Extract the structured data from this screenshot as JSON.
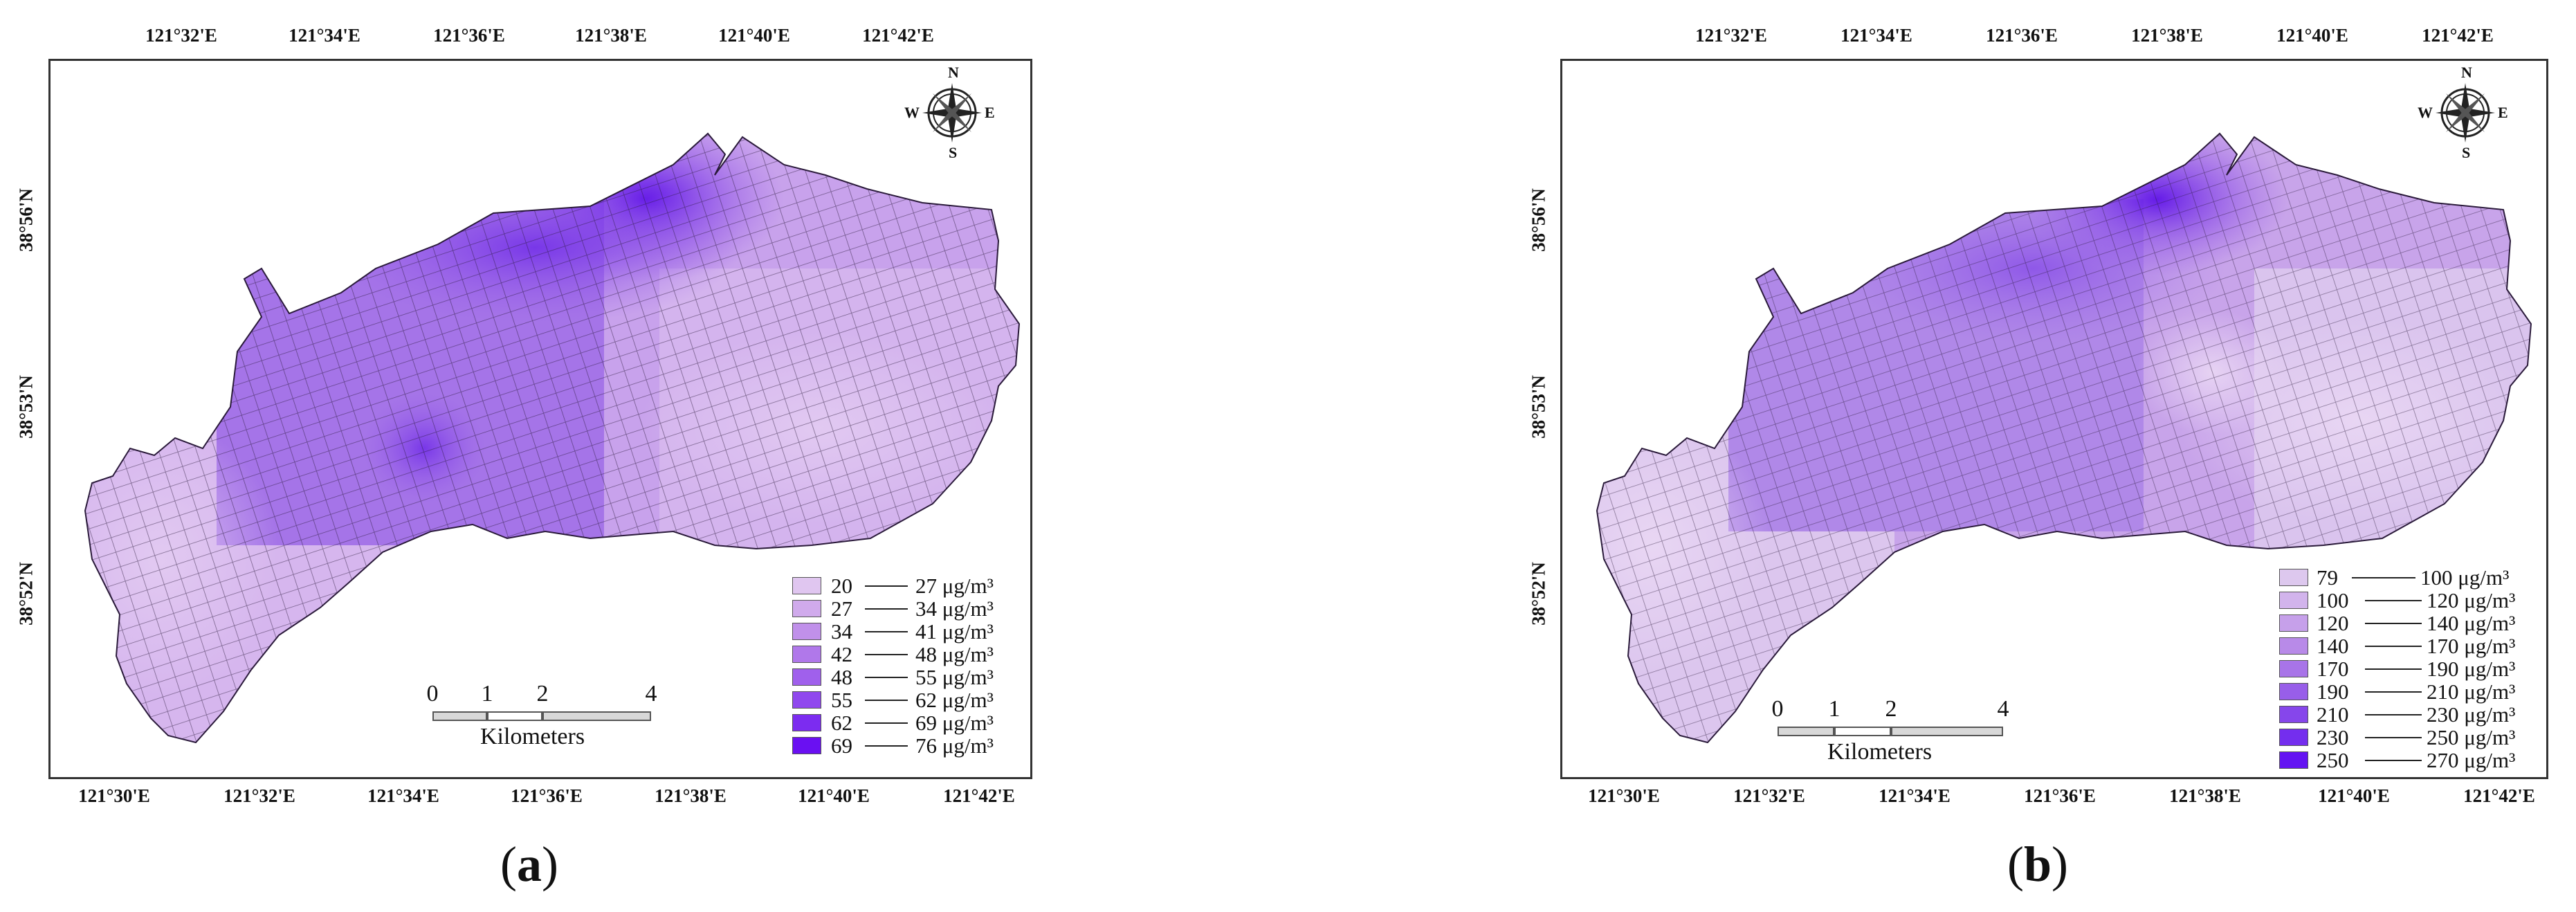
{
  "panels": [
    {
      "caption_open": "(",
      "caption_letter": "a",
      "caption_close": ")",
      "top_ticks": [
        "121°32'E",
        "121°34'E",
        "121°36'E",
        "121°38'E",
        "121°40'E",
        "121°42'E"
      ],
      "bottom_ticks": [
        "121°30'E",
        "121°32'E",
        "121°34'E",
        "121°36'E",
        "121°38'E",
        "121°40'E",
        "121°42'E"
      ],
      "left_ticks": [
        "38°56'N",
        "38°53'N",
        "38°52'N"
      ],
      "legend": [
        {
          "from": "20",
          "to": "27 μg/m³",
          "color": "#e0c6f0"
        },
        {
          "from": "27",
          "to": "34 μg/m³",
          "color": "#d0aaec"
        },
        {
          "from": "34",
          "to": "41 μg/m³",
          "color": "#c090ea"
        },
        {
          "from": "42",
          "to": "48 μg/m³",
          "color": "#b078ea"
        },
        {
          "from": "48",
          "to": "55 μg/m³",
          "color": "#a060ec"
        },
        {
          "from": "55",
          "to": "62 μg/m³",
          "color": "#9048ee"
        },
        {
          "from": "62",
          "to": "69 μg/m³",
          "color": "#7c2cf0"
        },
        {
          "from": "69",
          "to": "76 μg/m³",
          "color": "#6a10f2"
        }
      ],
      "scale": {
        "ticks": [
          "0",
          "1",
          "2",
          "4"
        ],
        "unit": "Kilometers"
      },
      "compass": {
        "n": "N",
        "s": "S",
        "e": "E",
        "w": "W"
      }
    },
    {
      "caption_open": "(",
      "caption_letter": "b",
      "caption_close": ")",
      "top_ticks": [
        "121°32'E",
        "121°34'E",
        "121°36'E",
        "121°38'E",
        "121°40'E",
        "121°42'E"
      ],
      "bottom_ticks": [
        "121°30'E",
        "121°32'E",
        "121°34'E",
        "121°36'E",
        "121°38'E",
        "121°40'E",
        "121°42'E"
      ],
      "left_ticks": [
        "38°56'N",
        "38°53'N",
        "38°52'N"
      ],
      "legend": [
        {
          "from": "79",
          "to": "100 μg/m³",
          "color": "#ddc8ee"
        },
        {
          "from": "100",
          "to": "120 μg/m³",
          "color": "#d2b4ec"
        },
        {
          "from": "120",
          "to": "140 μg/m³",
          "color": "#c6a0ea"
        },
        {
          "from": "140",
          "to": "170 μg/m³",
          "color": "#b88ae8"
        },
        {
          "from": "170",
          "to": "190 μg/m³",
          "color": "#a874e8"
        },
        {
          "from": "190",
          "to": "210 μg/m³",
          "color": "#985ee9"
        },
        {
          "from": "210",
          "to": "230 μg/m³",
          "color": "#8646eb"
        },
        {
          "from": "230",
          "to": "250 μg/m³",
          "color": "#742eee"
        },
        {
          "from": "250",
          "to": "270 μg/m³",
          "color": "#6414f2"
        }
      ],
      "scale": {
        "ticks": [
          "0",
          "1",
          "2",
          "4"
        ],
        "unit": "Kilometers"
      },
      "compass": {
        "n": "N",
        "s": "S",
        "e": "E",
        "w": "W"
      }
    }
  ]
}
